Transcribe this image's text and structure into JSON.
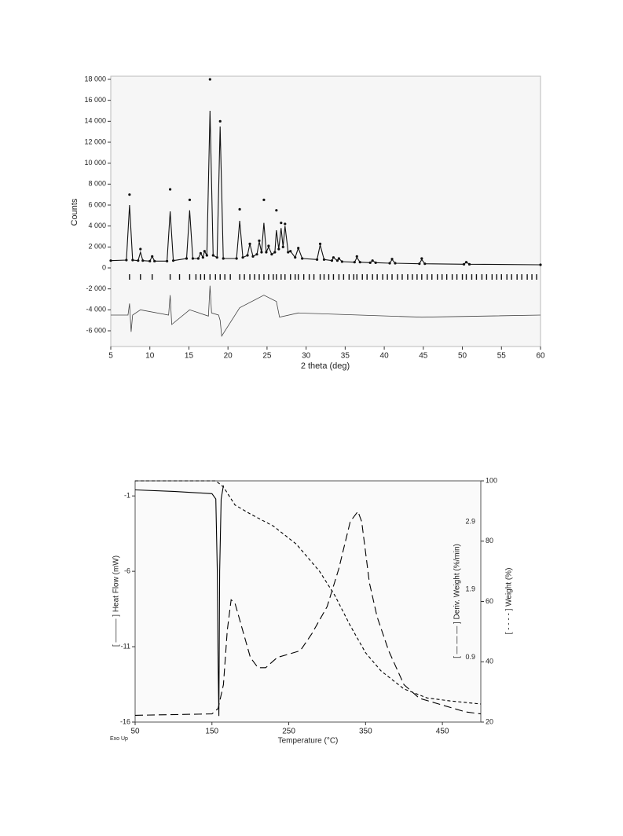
{
  "chart_data": [
    {
      "type": "line",
      "ylabel": "Counts",
      "xlabel": "2 theta (deg)",
      "xlim": [
        5,
        60
      ],
      "xticks": [
        5,
        10,
        15,
        20,
        25,
        30,
        35,
        40,
        45,
        50,
        55,
        60
      ],
      "ylim": [
        -7500,
        18300
      ],
      "yticks": [
        {
          "value": -6000,
          "label": "-6 000"
        },
        {
          "value": -4000,
          "label": "-4 000"
        },
        {
          "value": -2000,
          "label": "-2 000"
        },
        0,
        {
          "value": 2000,
          "label": "2 000"
        },
        {
          "value": 4000,
          "label": "4 000"
        },
        {
          "value": 6000,
          "label": "6 000"
        },
        {
          "value": 8000,
          "label": "8 000"
        },
        {
          "value": 10000,
          "label": "10 000"
        },
        {
          "value": 12000,
          "label": "12 000"
        },
        {
          "value": 14000,
          "label": "14 000"
        },
        {
          "value": 16000,
          "label": "16 000"
        },
        {
          "value": 18000,
          "label": "18 000"
        }
      ],
      "series": [
        {
          "kind": "points",
          "color": "#111111",
          "x": [
            5,
            7.0,
            7.4,
            7.8,
            8.5,
            8.8,
            9.1,
            10.0,
            10.3,
            10.6,
            12.2,
            12.6,
            13.0,
            14.7,
            15.1,
            15.5,
            16.2,
            16.5,
            16.8,
            17.0,
            17.3,
            17.7,
            18.1,
            18.6,
            19.0,
            19.4,
            21.1,
            21.5,
            21.9,
            22.5,
            22.8,
            23.2,
            23.7,
            24.0,
            24.3,
            24.6,
            24.9,
            25.2,
            25.6,
            26.0,
            26.2,
            26.5,
            26.8,
            27.05,
            27.3,
            27.7,
            28.0,
            28.6,
            29.0,
            29.5,
            31.4,
            31.8,
            32.3,
            33.3,
            33.5,
            34.0,
            34.2,
            34.6,
            36.2,
            36.5,
            36.9,
            38.2,
            38.5,
            38.9,
            40.7,
            41.0,
            41.4,
            44.5,
            44.8,
            45.2,
            50.2,
            50.5,
            50.9,
            60
          ],
          "values": [
            700,
            750,
            7000,
            750,
            700,
            1800,
            700,
            650,
            1100,
            650,
            650,
            7500,
            700,
            900,
            6500,
            900,
            900,
            1400,
            1000,
            1600,
            1200,
            18000,
            1200,
            1000,
            14000,
            900,
            900,
            5600,
            1000,
            1200,
            2300,
            1100,
            1300,
            2600,
            1500,
            6500,
            1500,
            2100,
            1300,
            1500,
            5500,
            1800,
            4300,
            2000,
            4200,
            1500,
            1600,
            1000,
            1900,
            900,
            800,
            2300,
            800,
            700,
            1000,
            700,
            900,
            600,
            550,
            1100,
            550,
            500,
            700,
            500,
            450,
            850,
            450,
            400,
            900,
            400,
            350,
            550,
            350,
            300
          ]
        },
        {
          "kind": "line",
          "color": "#111111",
          "x": [
            5,
            7.0,
            7.4,
            7.8,
            8.5,
            8.8,
            9.1,
            10.0,
            10.3,
            10.6,
            12.2,
            12.6,
            13.0,
            14.7,
            15.1,
            15.5,
            16.2,
            16.5,
            16.8,
            17.0,
            17.3,
            17.7,
            18.1,
            18.6,
            19.0,
            19.4,
            21.1,
            21.5,
            21.9,
            22.5,
            22.8,
            23.2,
            23.7,
            24.0,
            24.3,
            24.6,
            24.9,
            25.2,
            25.6,
            26.0,
            26.2,
            26.5,
            26.8,
            27.05,
            27.3,
            27.7,
            28.0,
            28.6,
            29.0,
            29.5,
            31.4,
            31.8,
            32.3,
            33.3,
            33.5,
            34.0,
            34.2,
            34.6,
            36.2,
            36.5,
            36.9,
            38.2,
            38.5,
            38.9,
            40.7,
            41.0,
            41.4,
            44.5,
            44.8,
            45.2,
            50.2,
            50.5,
            50.9,
            60
          ],
          "values": [
            700,
            750,
            6000,
            750,
            700,
            1500,
            700,
            650,
            1100,
            650,
            650,
            5400,
            700,
            900,
            5500,
            900,
            900,
            1400,
            1000,
            1600,
            1200,
            15000,
            1200,
            1000,
            13500,
            900,
            900,
            4500,
            1000,
            1200,
            2300,
            1100,
            1300,
            2500,
            1500,
            4300,
            1500,
            2000,
            1300,
            1500,
            3600,
            1800,
            3800,
            2000,
            4000,
            1500,
            1600,
            1000,
            1900,
            900,
            800,
            2200,
            800,
            700,
            1000,
            700,
            900,
            600,
            550,
            1000,
            550,
            500,
            700,
            500,
            450,
            800,
            450,
            400,
            800,
            400,
            350,
            550,
            350,
            300
          ]
        },
        {
          "kind": "line",
          "color": "#444444",
          "x": [
            5,
            7.2,
            7.4,
            7.6,
            7.8,
            8.8,
            12.4,
            12.6,
            12.8,
            15.1,
            17.5,
            17.7,
            17.9,
            18.8,
            19.0,
            19.2,
            21.5,
            24.6,
            26.2,
            26.6,
            29.0,
            44.8,
            60
          ],
          "values": [
            -4500,
            -4500,
            -3400,
            -6100,
            -4500,
            -4000,
            -4500,
            -2600,
            -5400,
            -4000,
            -4600,
            -1700,
            -4300,
            -4500,
            -5000,
            -6500,
            -3800,
            -2600,
            -3200,
            -4700,
            -4300,
            -4700,
            -4500
          ]
        }
      ],
      "reflections": [
        7.4,
        8.8,
        10.3,
        12.6,
        13.8,
        15.1,
        15.9,
        16.5,
        17.0,
        17.7,
        18.4,
        19.0,
        19.6,
        20.3,
        21.5,
        22.1,
        22.8,
        23.4,
        24.0,
        24.6,
        25.2,
        25.8,
        26.2,
        26.8,
        27.3,
        28.0,
        28.6,
        29.0,
        29.7,
        30.4,
        31.0,
        31.8,
        32.3,
        32.9,
        33.5,
        34.2,
        34.8,
        35.5,
        36.1,
        36.5,
        37.2,
        37.8,
        38.5,
        39.1,
        39.8,
        40.4,
        41.0,
        41.7,
        42.3,
        43.0,
        43.6,
        44.2,
        44.8,
        45.5,
        46.1,
        46.8,
        47.4,
        48.0,
        48.7,
        49.3,
        50.0,
        50.5,
        51.2,
        51.8,
        52.5,
        53.1,
        53.8,
        54.4,
        55.0,
        55.7,
        56.3,
        57.0,
        57.6,
        58.3,
        58.9,
        59.5
      ]
    },
    {
      "type": "line",
      "xlabel": "Temperature (°C)",
      "ylabel": "[ ——— ] Heat Flow (mW)",
      "y2label": "[ — — — ] Deriv. Weight (%/min)",
      "y3label": "[ - - - - ] Weight (%)",
      "note": "Exo Up",
      "xlim": [
        50,
        500
      ],
      "xticks": [
        50,
        150,
        250,
        350,
        450
      ],
      "ylim": [
        -16,
        0
      ],
      "yticks": [
        -16,
        -11,
        -6,
        -1
      ],
      "y2lim": [
        -0.05,
        3.5
      ],
      "y2ticks": [
        0.9,
        1.9,
        2.9
      ],
      "y3lim": [
        20,
        100
      ],
      "y3ticks": [
        20,
        40,
        60,
        80,
        100
      ],
      "series": [
        {
          "kind": "line",
          "style": "solid",
          "color": "#000000",
          "axis": "y",
          "x": [
            50,
            100,
            150,
            155,
            157,
            158,
            159,
            160,
            162,
            165
          ],
          "values": [
            -0.6,
            -0.7,
            -0.85,
            -1.2,
            -6,
            -12,
            -15.6,
            -6,
            -1.2,
            -0.3
          ]
        },
        {
          "kind": "line",
          "style": "long-dash",
          "color": "#000000",
          "axis": "y2",
          "x": [
            50,
            150,
            158,
            165,
            170,
            175,
            180,
            190,
            200,
            210,
            220,
            235,
            250,
            265,
            280,
            300,
            315,
            330,
            340,
            345,
            355,
            365,
            380,
            400,
            420,
            450,
            480,
            500
          ],
          "values": [
            0.05,
            0.07,
            0.15,
            0.5,
            1.3,
            1.75,
            1.7,
            1.3,
            0.9,
            0.75,
            0.75,
            0.9,
            0.95,
            1.0,
            1.25,
            1.65,
            2.2,
            2.9,
            3.05,
            2.9,
            2.0,
            1.5,
            1.0,
            0.5,
            0.3,
            0.2,
            0.1,
            0.07
          ]
        },
        {
          "kind": "line",
          "style": "short-dash",
          "color": "#000000",
          "axis": "y3",
          "x": [
            50,
            155,
            165,
            180,
            200,
            230,
            260,
            290,
            310,
            330,
            350,
            370,
            400,
            430,
            460,
            500
          ],
          "values": [
            100,
            100,
            98,
            92,
            89,
            85,
            79,
            70,
            62,
            52,
            43,
            37,
            31,
            28,
            27,
            26
          ]
        }
      ]
    }
  ]
}
